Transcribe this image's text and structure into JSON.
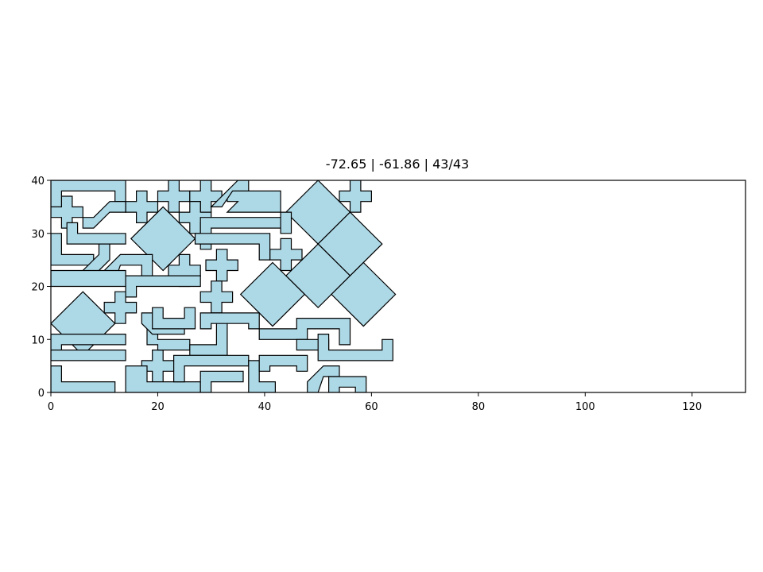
{
  "chart_data": {
    "type": "polygon-packing",
    "title": "-72.65 | -61.86 | 43/43",
    "xlim": [
      0,
      130
    ],
    "ylim": [
      0,
      40
    ],
    "xticks": [
      0,
      20,
      40,
      60,
      80,
      100,
      120
    ],
    "yticks": [
      0,
      10,
      20,
      30,
      40
    ],
    "grid": false,
    "aspect": "equal",
    "colors": {
      "fill": "#add8e6",
      "edge": "#000000",
      "frame": "#000000",
      "text": "#000000"
    },
    "shapes": [
      {
        "kind": "diamond",
        "center": [
          50,
          34
        ],
        "half": 6
      },
      {
        "kind": "diamond",
        "center": [
          56,
          28
        ],
        "half": 6
      },
      {
        "kind": "diamond",
        "center": [
          50,
          22
        ],
        "half": 6
      },
      {
        "kind": "diamond",
        "center": [
          58.5,
          18.5
        ],
        "half": 6
      },
      {
        "kind": "diamond",
        "center": [
          41.5,
          18.5
        ],
        "half": 6
      },
      {
        "kind": "diamond",
        "center": [
          21,
          29
        ],
        "half": 6
      },
      {
        "kind": "diamond",
        "center": [
          6,
          13
        ],
        "half": 6
      },
      {
        "kind": "cross",
        "center": [
          3,
          34
        ],
        "arm": 3,
        "width": 2
      },
      {
        "kind": "cross",
        "center": [
          17,
          35
        ],
        "arm": 3,
        "width": 2
      },
      {
        "kind": "cross",
        "center": [
          23,
          37
        ],
        "arm": 3,
        "width": 2
      },
      {
        "kind": "cross",
        "center": [
          29,
          37
        ],
        "arm": 3,
        "width": 2
      },
      {
        "kind": "cross",
        "center": [
          27,
          33
        ],
        "arm": 3,
        "width": 2
      },
      {
        "kind": "cross",
        "center": [
          57,
          37
        ],
        "arm": 3,
        "width": 2
      },
      {
        "kind": "cross",
        "center": [
          25,
          23
        ],
        "arm": 3,
        "width": 2
      },
      {
        "kind": "cross",
        "center": [
          32,
          24
        ],
        "arm": 3,
        "width": 2
      },
      {
        "kind": "cross",
        "center": [
          44,
          26
        ],
        "arm": 3,
        "width": 2
      },
      {
        "kind": "cross",
        "center": [
          31,
          18
        ],
        "arm": 3,
        "width": 2
      },
      {
        "kind": "cross",
        "center": [
          13,
          16
        ],
        "arm": 3,
        "width": 2
      },
      {
        "kind": "cross",
        "center": [
          20,
          5
        ],
        "arm": 3,
        "width": 2
      },
      {
        "kind": "poly",
        "points": [
          [
            0,
            35
          ],
          [
            0,
            40
          ],
          [
            14,
            40
          ],
          [
            14,
            36
          ],
          [
            12,
            36
          ],
          [
            12,
            38
          ],
          [
            2,
            38
          ],
          [
            2,
            35
          ]
        ]
      },
      {
        "kind": "poly",
        "points": [
          [
            5,
            30
          ],
          [
            14,
            30
          ],
          [
            14,
            28
          ],
          [
            3,
            28
          ],
          [
            3,
            32
          ],
          [
            5,
            32
          ]
        ]
      },
      {
        "kind": "poly",
        "points": [
          [
            0,
            24
          ],
          [
            0,
            30
          ],
          [
            2,
            30
          ],
          [
            2,
            26
          ],
          [
            8,
            26
          ],
          [
            8,
            24
          ]
        ]
      },
      {
        "kind": "poly",
        "points": [
          [
            8,
            33
          ],
          [
            11,
            36
          ],
          [
            14,
            36
          ],
          [
            14,
            34
          ],
          [
            11,
            34
          ],
          [
            8,
            31
          ],
          [
            6,
            31
          ],
          [
            6,
            33
          ]
        ]
      },
      {
        "kind": "poly",
        "points": [
          [
            8,
            22
          ],
          [
            11,
            25
          ],
          [
            11,
            28
          ],
          [
            9,
            28
          ],
          [
            9,
            26
          ],
          [
            6,
            23
          ],
          [
            6,
            22
          ]
        ]
      },
      {
        "kind": "poly",
        "points": [
          [
            10,
            23
          ],
          [
            13,
            26
          ],
          [
            19,
            26
          ],
          [
            19,
            21
          ],
          [
            17,
            21
          ],
          [
            17,
            24
          ],
          [
            13,
            24
          ],
          [
            12,
            21
          ],
          [
            10,
            21
          ]
        ]
      },
      {
        "kind": "poly",
        "points": [
          [
            0,
            20
          ],
          [
            0,
            23
          ],
          [
            14,
            23
          ],
          [
            14,
            20
          ]
        ]
      },
      {
        "kind": "poly",
        "points": [
          [
            14,
            18
          ],
          [
            14,
            22
          ],
          [
            28,
            22
          ],
          [
            28,
            20
          ],
          [
            16,
            20
          ],
          [
            16,
            18
          ]
        ]
      },
      {
        "kind": "poly",
        "points": [
          [
            28,
            27
          ],
          [
            28,
            33
          ],
          [
            44,
            33
          ],
          [
            44,
            31
          ],
          [
            30,
            31
          ],
          [
            30,
            27
          ]
        ]
      },
      {
        "kind": "poly",
        "points": [
          [
            33,
            36
          ],
          [
            33,
            38
          ],
          [
            43,
            38
          ],
          [
            43,
            34
          ],
          [
            33,
            34
          ],
          [
            35,
            36
          ]
        ]
      },
      {
        "kind": "poly",
        "points": [
          [
            30,
            35
          ],
          [
            35,
            40
          ],
          [
            37,
            40
          ],
          [
            37,
            38
          ],
          [
            34,
            38
          ],
          [
            32,
            35
          ]
        ]
      },
      {
        "kind": "poly",
        "points": [
          [
            45,
            34
          ],
          [
            45,
            30
          ],
          [
            43,
            30
          ],
          [
            43,
            34
          ]
        ]
      },
      {
        "kind": "poly",
        "points": [
          [
            27,
            28
          ],
          [
            27,
            30
          ],
          [
            41,
            30
          ],
          [
            41,
            25
          ],
          [
            39,
            25
          ],
          [
            39,
            28
          ]
        ]
      },
      {
        "kind": "poly",
        "points": [
          [
            0,
            8
          ],
          [
            0,
            11
          ],
          [
            14,
            11
          ],
          [
            14,
            9
          ],
          [
            2,
            9
          ],
          [
            2,
            8
          ]
        ]
      },
      {
        "kind": "poly",
        "points": [
          [
            0,
            0
          ],
          [
            0,
            5
          ],
          [
            2,
            5
          ],
          [
            2,
            2
          ],
          [
            12,
            2
          ],
          [
            12,
            0
          ]
        ]
      },
      {
        "kind": "poly",
        "points": [
          [
            0,
            6
          ],
          [
            0,
            8
          ],
          [
            14,
            8
          ],
          [
            14,
            6
          ]
        ]
      },
      {
        "kind": "poly",
        "points": [
          [
            14,
            0
          ],
          [
            14,
            5
          ],
          [
            18,
            5
          ],
          [
            18,
            2
          ],
          [
            28,
            2
          ],
          [
            28,
            0
          ]
        ]
      },
      {
        "kind": "poly",
        "points": [
          [
            18,
            9
          ],
          [
            18,
            12
          ],
          [
            20,
            12
          ],
          [
            20,
            10
          ],
          [
            26,
            10
          ],
          [
            26,
            8
          ],
          [
            20,
            8
          ],
          [
            20,
            9
          ]
        ]
      },
      {
        "kind": "poly",
        "points": [
          [
            17,
            13
          ],
          [
            17,
            15
          ],
          [
            20,
            15
          ],
          [
            20,
            13
          ],
          [
            25,
            13
          ],
          [
            25,
            11
          ],
          [
            19,
            11
          ],
          [
            17,
            13
          ]
        ]
      },
      {
        "kind": "poly",
        "points": [
          [
            19,
            16
          ],
          [
            21,
            16
          ],
          [
            21,
            14
          ],
          [
            25,
            14
          ],
          [
            25,
            16
          ],
          [
            27,
            16
          ],
          [
            27,
            12
          ],
          [
            19,
            12
          ]
        ]
      },
      {
        "kind": "poly",
        "points": [
          [
            26,
            9
          ],
          [
            26,
            7
          ],
          [
            33,
            7
          ],
          [
            33,
            14
          ],
          [
            31,
            14
          ],
          [
            31,
            9
          ]
        ]
      },
      {
        "kind": "poly",
        "points": [
          [
            28,
            12
          ],
          [
            28,
            15
          ],
          [
            39,
            15
          ],
          [
            39,
            12
          ],
          [
            37,
            12
          ],
          [
            37,
            13
          ],
          [
            30,
            13
          ],
          [
            30,
            12
          ]
        ]
      },
      {
        "kind": "poly",
        "points": [
          [
            23,
            2
          ],
          [
            23,
            7
          ],
          [
            37,
            7
          ],
          [
            37,
            5
          ],
          [
            25,
            5
          ],
          [
            25,
            2
          ]
        ]
      },
      {
        "kind": "poly",
        "points": [
          [
            28,
            0
          ],
          [
            28,
            4
          ],
          [
            36,
            4
          ],
          [
            36,
            2
          ],
          [
            30,
            2
          ],
          [
            30,
            0
          ]
        ]
      },
      {
        "kind": "poly",
        "points": [
          [
            37,
            0
          ],
          [
            37,
            6
          ],
          [
            39,
            6
          ],
          [
            39,
            2
          ],
          [
            42,
            2
          ],
          [
            42,
            0
          ]
        ]
      },
      {
        "kind": "poly",
        "points": [
          [
            39,
            4
          ],
          [
            39,
            7
          ],
          [
            48,
            7
          ],
          [
            48,
            4
          ],
          [
            46,
            4
          ],
          [
            46,
            5
          ],
          [
            41,
            5
          ],
          [
            41,
            4
          ]
        ]
      },
      {
        "kind": "poly",
        "points": [
          [
            39,
            10
          ],
          [
            39,
            12
          ],
          [
            46,
            12
          ],
          [
            46,
            14
          ],
          [
            56,
            14
          ],
          [
            56,
            9
          ],
          [
            54,
            9
          ],
          [
            54,
            12
          ],
          [
            48,
            12
          ],
          [
            48,
            10
          ]
        ]
      },
      {
        "kind": "poly",
        "points": [
          [
            46,
            8
          ],
          [
            46,
            10
          ],
          [
            52,
            10
          ],
          [
            52,
            8
          ]
        ]
      },
      {
        "kind": "poly",
        "points": [
          [
            48,
            0
          ],
          [
            48,
            2
          ],
          [
            51,
            5
          ],
          [
            54,
            5
          ],
          [
            54,
            3
          ],
          [
            51,
            3
          ],
          [
            50,
            0
          ]
        ]
      },
      {
        "kind": "poly",
        "points": [
          [
            52,
            0
          ],
          [
            52,
            3
          ],
          [
            59,
            3
          ],
          [
            59,
            0
          ],
          [
            57,
            0
          ],
          [
            57,
            1
          ],
          [
            54,
            1
          ],
          [
            54,
            0
          ]
        ]
      },
      {
        "kind": "poly",
        "points": [
          [
            50,
            6
          ],
          [
            50,
            11
          ],
          [
            52,
            11
          ],
          [
            52,
            8
          ],
          [
            62,
            8
          ],
          [
            62,
            10
          ],
          [
            64,
            10
          ],
          [
            64,
            6
          ]
        ]
      }
    ]
  }
}
